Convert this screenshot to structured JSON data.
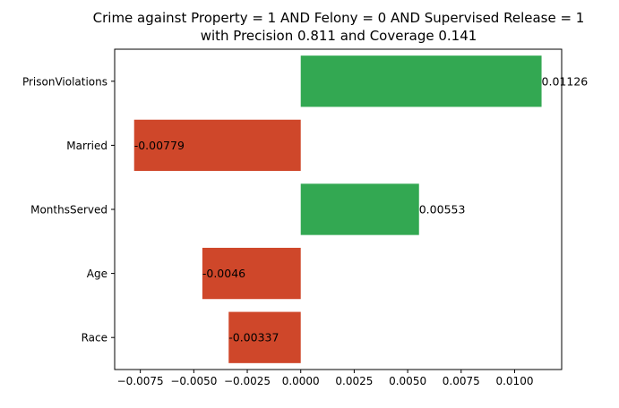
{
  "chart_data": {
    "type": "bar",
    "orientation": "horizontal",
    "title_lines": [
      "Crime against Property = 1 AND Felony = 0 AND Supervised Release = 1",
      "with Precision 0.811 and Coverage 0.141"
    ],
    "categories": [
      "PrisonViolations",
      "Married",
      "MonthsServed",
      "Age",
      "Race"
    ],
    "values": [
      0.01126,
      -0.00779,
      0.00553,
      -0.0046,
      -0.00337
    ],
    "value_labels": [
      "0.01126",
      "-0.00779",
      "0.00553",
      "-0.0046",
      "-0.00337"
    ],
    "xlim": [
      -0.0087,
      0.0122
    ],
    "x_ticks": [
      -0.0075,
      -0.005,
      -0.0025,
      0.0,
      0.0025,
      0.005,
      0.0075,
      0.01
    ],
    "x_tick_labels": [
      "−0.0075",
      "−0.0050",
      "−0.0025",
      "0.0000",
      "0.0025",
      "0.0050",
      "0.0075",
      "0.0100"
    ],
    "xlabel": "",
    "ylabel": "",
    "grid": false,
    "colors": {
      "positive": "#33a852",
      "negative": "#cf472a",
      "axis": "#000000"
    }
  }
}
